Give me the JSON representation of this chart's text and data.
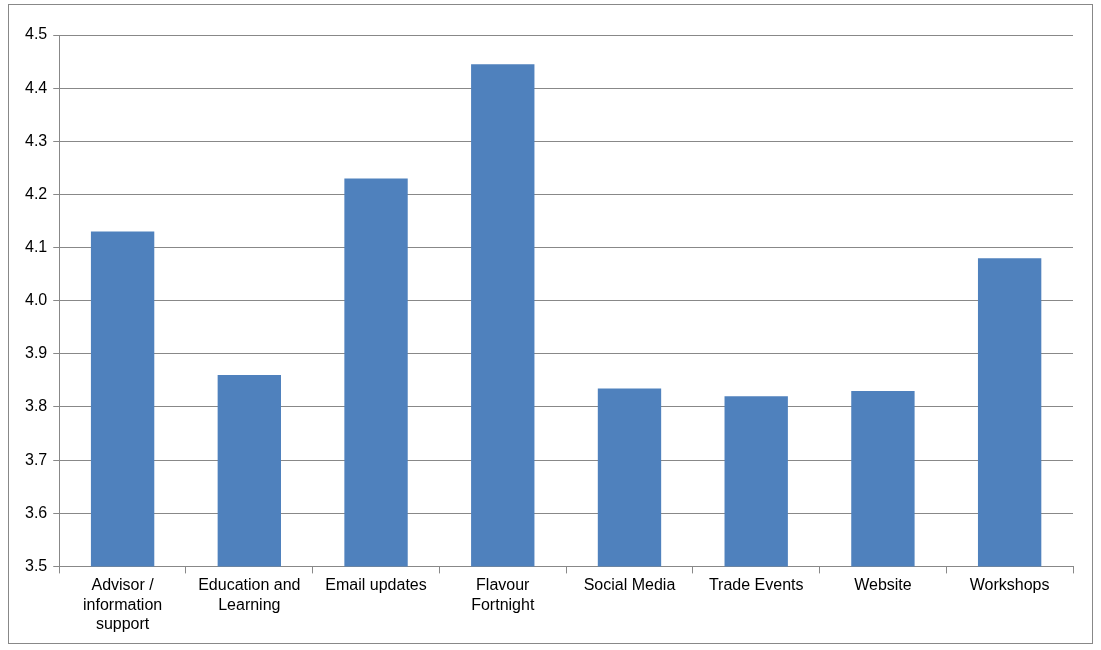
{
  "chart_data": {
    "type": "bar",
    "categories": [
      "Advisor / information support",
      "Education and Learning",
      "Email updates",
      "Flavour Fortnight",
      "Social Media",
      "Trade Events",
      "Website",
      "Workshops"
    ],
    "values": [
      4.13,
      3.86,
      4.23,
      4.445,
      3.835,
      3.82,
      3.83,
      4.08
    ],
    "color": "#4f81bd",
    "ylim": [
      3.5,
      4.5
    ],
    "yticks": [
      3.5,
      3.6,
      3.7,
      3.8,
      3.9,
      {
        "value": 4,
        "label": "4.0"
      },
      4.1,
      4.2,
      4.3,
      4.4,
      4.5
    ],
    "grid": "y",
    "legend": false
  }
}
